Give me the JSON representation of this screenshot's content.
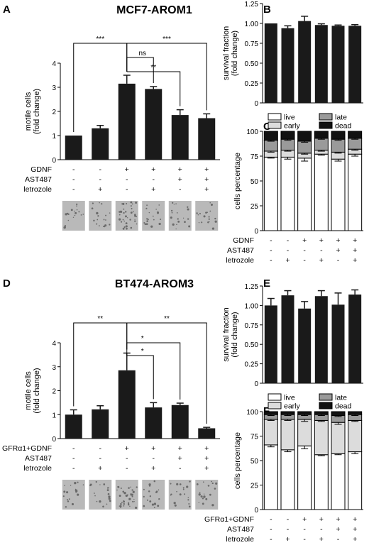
{
  "chart_data": [
    {
      "panel": "A",
      "type": "bar",
      "title": "MCF7-AROM1",
      "ylabel": "motile cells\n(fold change)",
      "ylim": [
        0,
        4
      ],
      "yticks": [
        "0",
        "1",
        "2",
        "3",
        "4"
      ],
      "values": [
        1.0,
        1.3,
        3.15,
        2.93,
        1.85,
        1.72
      ],
      "errors": [
        0.0,
        0.12,
        0.35,
        0.1,
        0.22,
        0.18
      ],
      "significance": [
        {
          "from": 0,
          "to": 2,
          "label": "***"
        },
        {
          "from": 2,
          "to": 3,
          "label": "ns"
        },
        {
          "from": 2,
          "to": 4,
          "label": "**"
        },
        {
          "from": 2,
          "to": 5,
          "label": "***"
        }
      ],
      "treatments": [
        {
          "label": "GDNF",
          "values": [
            "-",
            "-",
            "+",
            "+",
            "+",
            "+"
          ]
        },
        {
          "label": "AST487",
          "values": [
            "-",
            "-",
            "-",
            "-",
            "+",
            "+"
          ]
        },
        {
          "label": "letrozole",
          "values": [
            "-",
            "+",
            "-",
            "+",
            "-",
            "+"
          ]
        }
      ]
    },
    {
      "panel": "B",
      "type": "bar",
      "ylabel": "survival fraction\n(fold change)",
      "ylim": [
        0,
        1.25
      ],
      "yticks": [
        "0",
        "0.25",
        "0.50",
        "0.75",
        "1.00",
        "1.25"
      ],
      "values": [
        1.0,
        0.94,
        1.03,
        0.98,
        0.97,
        0.97
      ],
      "errors": [
        0.0,
        0.03,
        0.06,
        0.015,
        0.01,
        0.015
      ]
    },
    {
      "panel": "C",
      "type": "bar",
      "stacked": true,
      "ylabel": "cells percentage",
      "ylim": [
        0,
        100
      ],
      "yticks": [
        "0",
        "25",
        "50",
        "75",
        "100"
      ],
      "legend": [
        {
          "name": "live",
          "color": "#ffffff"
        },
        {
          "name": "late",
          "color": "#9a9a9a"
        },
        {
          "name": "early",
          "color": "#dcdcdc"
        },
        {
          "name": "dead",
          "color": "#111111"
        }
      ],
      "series": [
        {
          "name": "live",
          "values": [
            74,
            74,
            73,
            77,
            72,
            77
          ],
          "errors": [
            1,
            2,
            3,
            1,
            2,
            2
          ]
        },
        {
          "name": "early",
          "values": [
            6,
            7,
            5,
            4,
            7,
            5
          ],
          "errors": [
            1,
            1,
            1,
            1,
            1,
            1
          ]
        },
        {
          "name": "late",
          "values": [
            11,
            11,
            12,
            12,
            13,
            11
          ],
          "errors": [
            1,
            1,
            1,
            1,
            1,
            1
          ]
        },
        {
          "name": "dead",
          "values": [
            9,
            8,
            10,
            7,
            8,
            7
          ],
          "errors": [
            0,
            0,
            0,
            0,
            0,
            0
          ]
        }
      ],
      "treatments": [
        {
          "label": "GDNF",
          "values": [
            "-",
            "-",
            "+",
            "+",
            "+",
            "+"
          ]
        },
        {
          "label": "AST487",
          "values": [
            "-",
            "-",
            "-",
            "-",
            "+",
            "+"
          ]
        },
        {
          "label": "letrozole",
          "values": [
            "-",
            "+",
            "-",
            "+",
            "-",
            "+"
          ]
        }
      ]
    },
    {
      "panel": "D",
      "type": "bar",
      "title": "BT474-AROM3",
      "ylabel": "motile cells\n(fold change)",
      "ylim": [
        0,
        4
      ],
      "yticks": [
        "0",
        "1",
        "2",
        "3",
        "4"
      ],
      "values": [
        1.0,
        1.22,
        2.85,
        1.3,
        1.4,
        0.43
      ],
      "errors": [
        0.2,
        0.15,
        0.72,
        0.2,
        0.08,
        0.04
      ],
      "significance": [
        {
          "from": 0,
          "to": 2,
          "label": "**"
        },
        {
          "from": 2,
          "to": 3,
          "label": "*"
        },
        {
          "from": 2,
          "to": 4,
          "label": "*"
        },
        {
          "from": 2,
          "to": 5,
          "label": "**"
        }
      ],
      "treatments": [
        {
          "label": "GFRα1+GDNF",
          "values": [
            "-",
            "-",
            "+",
            "+",
            "+",
            "+"
          ]
        },
        {
          "label": "AST487",
          "values": [
            "-",
            "-",
            "-",
            "-",
            "+",
            "+"
          ]
        },
        {
          "label": "letrozole",
          "values": [
            "-",
            "+",
            "-",
            "+",
            "-",
            "+"
          ]
        }
      ]
    },
    {
      "panel": "E",
      "type": "bar",
      "ylabel": "survival fraction\n(fold change)",
      "ylim": [
        0,
        1.25
      ],
      "yticks": [
        "0",
        "0.25",
        "0.50",
        "0.75",
        "1.00",
        "1.25"
      ],
      "values": [
        1.0,
        1.13,
        0.96,
        1.12,
        1.01,
        1.14
      ],
      "errors": [
        0.09,
        0.06,
        0.09,
        0.07,
        0.15,
        0.06
      ]
    },
    {
      "panel": "F",
      "type": "bar",
      "stacked": true,
      "ylabel": "cells percentage",
      "ylim": [
        0,
        100
      ],
      "yticks": [
        "0",
        "25",
        "50",
        "75",
        "100"
      ],
      "legend": [
        {
          "name": "live",
          "color": "#ffffff"
        },
        {
          "name": "late",
          "color": "#9a9a9a"
        },
        {
          "name": "early",
          "color": "#dcdcdc"
        },
        {
          "name": "dead",
          "color": "#111111"
        }
      ],
      "series": [
        {
          "name": "live",
          "values": [
            66,
            61,
            65,
            56,
            57,
            59
          ],
          "errors": [
            2,
            2,
            3,
            1,
            1,
            2
          ]
        },
        {
          "name": "early",
          "values": [
            26,
            31,
            27,
            35,
            32,
            32
          ],
          "errors": [
            1,
            1,
            2,
            1,
            2,
            1
          ]
        },
        {
          "name": "late",
          "values": [
            5,
            5,
            5,
            6,
            7,
            6
          ],
          "errors": [
            1,
            1,
            1,
            1,
            1,
            1
          ]
        },
        {
          "name": "dead",
          "values": [
            3,
            3,
            3,
            3,
            4,
            3
          ],
          "errors": [
            0,
            0,
            0,
            0,
            0,
            0
          ]
        }
      ],
      "treatments": [
        {
          "label": "GFRα1+GDNF",
          "values": [
            "-",
            "-",
            "+",
            "+",
            "+",
            "+"
          ]
        },
        {
          "label": "AST487",
          "values": [
            "-",
            "-",
            "-",
            "-",
            "+",
            "+"
          ]
        },
        {
          "label": "letrozole",
          "values": [
            "-",
            "+",
            "-",
            "+",
            "-",
            "+"
          ]
        }
      ]
    }
  ],
  "micrographs": {
    "rows": 2,
    "per_row": 6,
    "image_description": "grey microscope field of migrated cells"
  },
  "colors": {
    "bar": "#1a1a1a",
    "axis": "#000000",
    "micrograph": "#b9b9b9",
    "micrograph_dots": "#6a6a6a"
  }
}
